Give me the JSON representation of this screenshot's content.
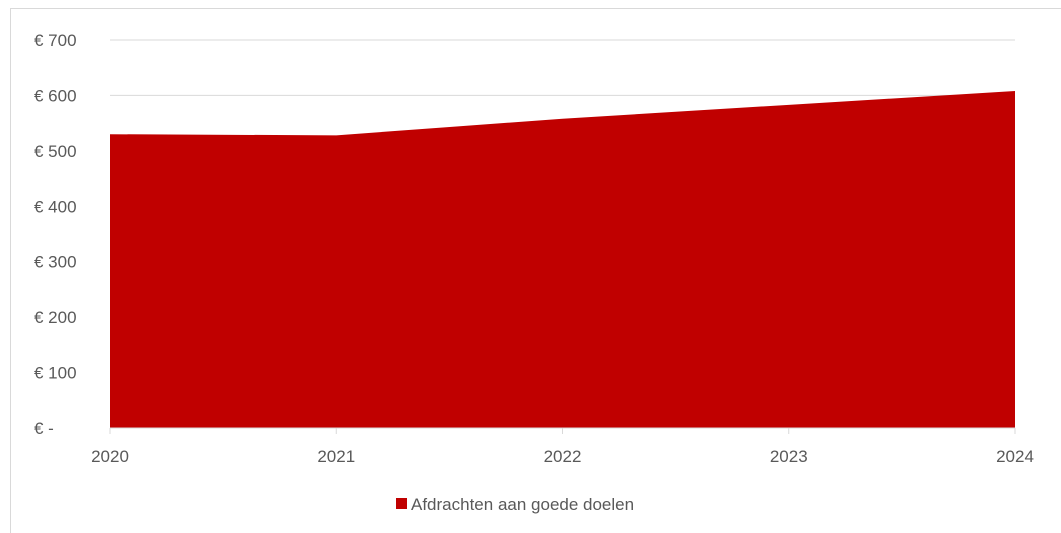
{
  "chart_data": {
    "type": "area",
    "x": [
      "2020",
      "2021",
      "2022",
      "2023",
      "2024"
    ],
    "series": [
      {
        "name": "Afdrachten aan goede doelen",
        "values": [
          530,
          528,
          558,
          583,
          608
        ],
        "color": "#C00000"
      }
    ],
    "ylim": [
      0,
      700
    ],
    "yticks": [
      0,
      100,
      200,
      300,
      400,
      500,
      600,
      700
    ],
    "ytick_labels": [
      "€ -",
      "€ 100",
      "€ 200",
      "€ 300",
      "€ 400",
      "€ 500",
      "€ 600",
      "€ 700"
    ],
    "grid": true,
    "legend_position": "bottom"
  }
}
